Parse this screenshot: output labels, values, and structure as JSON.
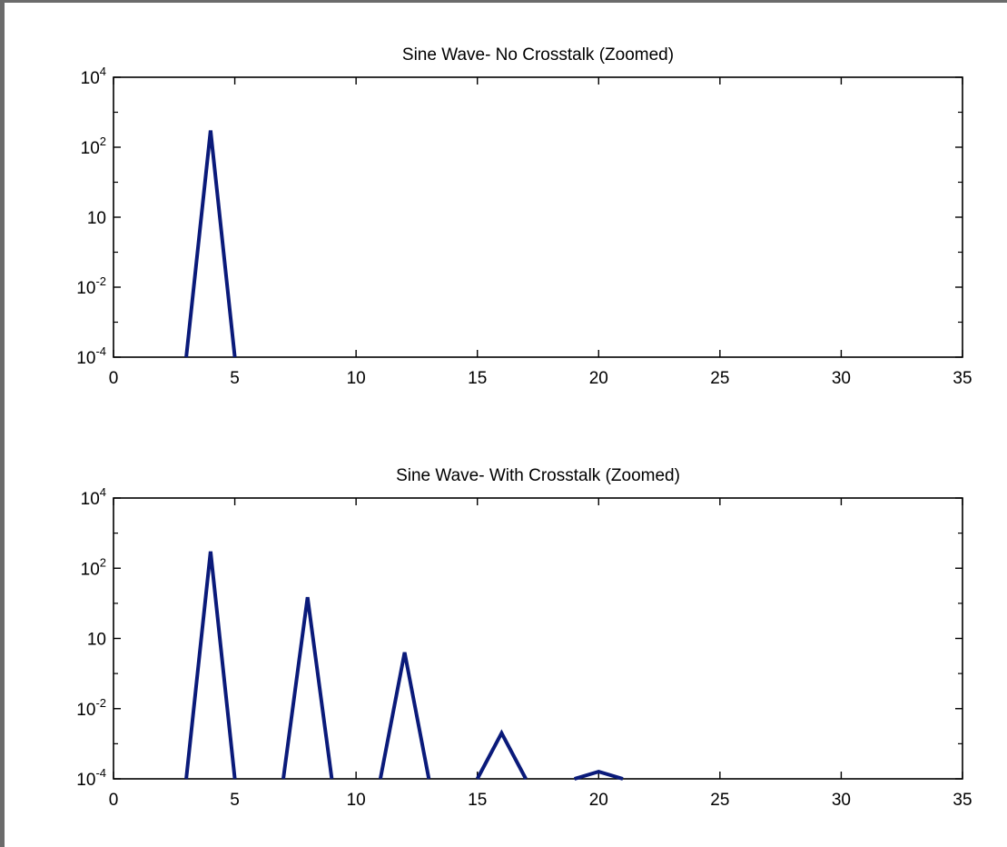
{
  "chart_data": [
    {
      "type": "line",
      "title": "Sine Wave- No Crosstalk (Zoomed)",
      "xlabel": "",
      "ylabel": "",
      "xlim": [
        0,
        35
      ],
      "ylim": [
        0.0001,
        10000
      ],
      "yscale": "log",
      "grid": false,
      "color": "#0a1a7a",
      "x_ticks": [
        0,
        5,
        10,
        15,
        20,
        25,
        30,
        35
      ],
      "x_tick_labels": [
        "0",
        "5",
        "10",
        "15",
        "20",
        "25",
        "30",
        "35"
      ],
      "y_ticks": [
        {
          "value": 0.0001,
          "base": "10",
          "exp": "-4"
        },
        {
          "value": 0.01,
          "base": "10",
          "exp": "-2"
        },
        {
          "value": 1,
          "base": "10",
          "exp": ""
        },
        {
          "value": 100,
          "base": "10",
          "exp": "2"
        },
        {
          "value": 10000,
          "base": "10",
          "exp": "4"
        }
      ],
      "series": [
        {
          "x": [
            3,
            4,
            5
          ],
          "y": [
            0.0001,
            300,
            0.0001
          ]
        }
      ]
    },
    {
      "type": "line",
      "title": "Sine Wave- With Crosstalk (Zoomed)",
      "xlabel": "",
      "ylabel": "",
      "xlim": [
        0,
        35
      ],
      "ylim": [
        0.0001,
        10000
      ],
      "yscale": "log",
      "grid": false,
      "color": "#0a1a7a",
      "x_ticks": [
        0,
        5,
        10,
        15,
        20,
        25,
        30,
        35
      ],
      "x_tick_labels": [
        "0",
        "5",
        "10",
        "15",
        "20",
        "25",
        "30",
        "35"
      ],
      "y_ticks": [
        {
          "value": 0.0001,
          "base": "10",
          "exp": "-4"
        },
        {
          "value": 0.01,
          "base": "10",
          "exp": "-2"
        },
        {
          "value": 1,
          "base": "10",
          "exp": ""
        },
        {
          "value": 100,
          "base": "10",
          "exp": "2"
        },
        {
          "value": 10000,
          "base": "10",
          "exp": "4"
        }
      ],
      "series": [
        {
          "x": [
            3,
            4,
            5
          ],
          "y": [
            0.0001,
            300,
            0.0001
          ]
        },
        {
          "x": [
            7,
            8,
            9
          ],
          "y": [
            0.0001,
            15,
            0.0001
          ]
        },
        {
          "x": [
            11,
            12,
            13
          ],
          "y": [
            0.0001,
            0.4,
            0.0001
          ]
        },
        {
          "x": [
            15,
            16,
            17
          ],
          "y": [
            0.0001,
            0.002,
            0.0001
          ]
        },
        {
          "x": [
            19,
            20,
            21
          ],
          "y": [
            0.0001,
            0.00016,
            0.0001
          ]
        }
      ]
    }
  ]
}
